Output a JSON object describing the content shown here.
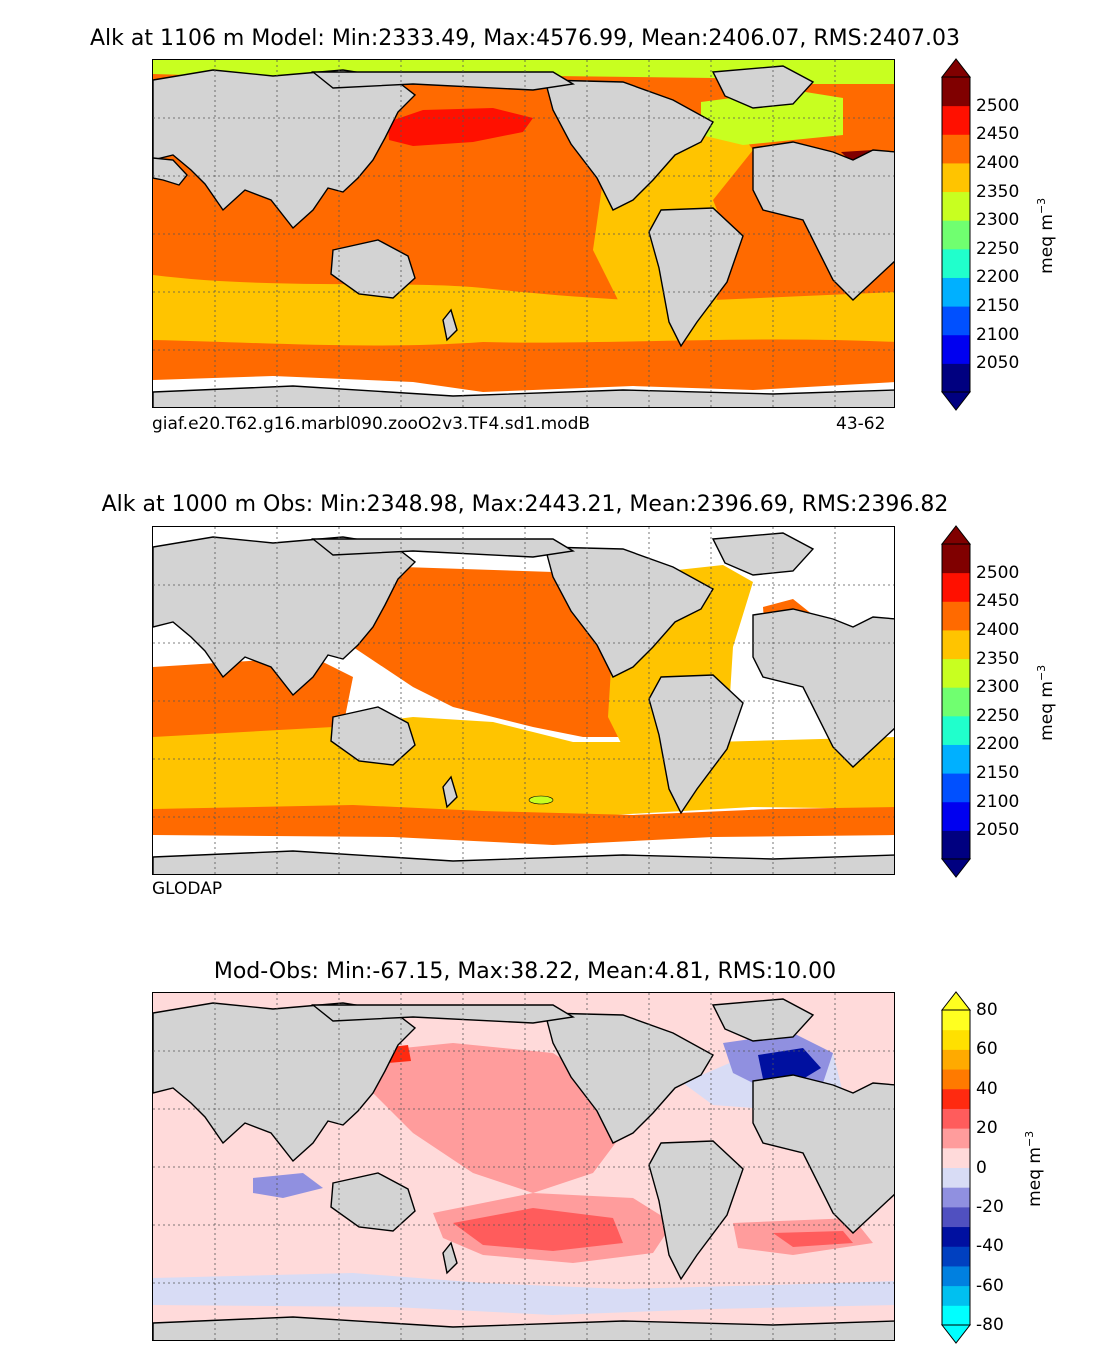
{
  "panels": {
    "model": {
      "title": "Alk at 1106 m Model: Min:2333.49, Max:4576.99, Mean:2406.07, RMS:2407.03",
      "case_label": "giaf.e20.T62.g16.marbl090.zooO2v3.TF4.sd1.modB",
      "years_label": "43-62"
    },
    "obs": {
      "title": "Alk at 1000 m Obs: Min:2348.98, Max:2443.21, Mean:2396.69, RMS:2396.82",
      "source_label": "GLODAP"
    },
    "diff": {
      "title": "Mod-Obs: Min:-67.15, Max:38.22, Mean:4.81, RMS:10.00"
    }
  },
  "colorbar_main": {
    "unit": "meq m",
    "unit_exp": "−3",
    "ticks": [
      "2500",
      "2450",
      "2400",
      "2350",
      "2300",
      "2250",
      "2200",
      "2150",
      "2100",
      "2050"
    ],
    "colors": [
      "#000080",
      "#0000f0",
      "#0050ff",
      "#00b0ff",
      "#20ffcc",
      "#70ff70",
      "#c8ff20",
      "#ffc400",
      "#ff6a00",
      "#ff1000",
      "#800000"
    ],
    "under": "#000080",
    "over": "#800000"
  },
  "colorbar_diff": {
    "unit": "meq m",
    "unit_exp": "−3",
    "ticks": [
      "80",
      "60",
      "40",
      "20",
      "0",
      "-20",
      "-40",
      "-60",
      "-80"
    ],
    "colors": [
      "#00ffff",
      "#00c0f0",
      "#0080e0",
      "#0040c0",
      "#0010a0",
      "#5050c0",
      "#9090e0",
      "#d8dcf5",
      "#ffdada",
      "#ff9c9c",
      "#ff5c5c",
      "#ff2a10",
      "#ff7a00",
      "#ffaa00",
      "#ffe000",
      "#ffff20"
    ],
    "under": "#00ffff",
    "over": "#ffff20"
  },
  "palette": {
    "land": "#d3d3d3",
    "missing": "#ffffff",
    "grid": "#555555"
  },
  "chart_data": [
    {
      "type": "heatmap",
      "title": "Alk at 1106 m Model: Min:2333.49, Max:4576.99, Mean:2406.07, RMS:2407.03",
      "variable": "Alkalinity",
      "units": "meq m^-3",
      "levels": [
        2050,
        2100,
        2150,
        2200,
        2250,
        2300,
        2350,
        2400,
        2450,
        2500
      ],
      "stats": {
        "min": 2333.49,
        "max": 4576.99,
        "mean": 2406.07,
        "rms": 2407.03
      }
    },
    {
      "type": "heatmap",
      "title": "Alk at 1000 m Obs: Min:2348.98, Max:2443.21, Mean:2396.69, RMS:2396.82",
      "variable": "Alkalinity",
      "units": "meq m^-3",
      "levels": [
        2050,
        2100,
        2150,
        2200,
        2250,
        2300,
        2350,
        2400,
        2450,
        2500
      ],
      "stats": {
        "min": 2348.98,
        "max": 2443.21,
        "mean": 2396.69,
        "rms": 2396.82
      }
    },
    {
      "type": "heatmap",
      "title": "Mod-Obs: Min:-67.15, Max:38.22, Mean:4.81, RMS:10.00",
      "variable": "Alkalinity difference",
      "units": "meq m^-3",
      "levels": [
        -80,
        -70,
        -60,
        -50,
        -40,
        -30,
        -20,
        -10,
        0,
        10,
        20,
        30,
        40,
        50,
        60,
        70,
        80
      ],
      "stats": {
        "min": -67.15,
        "max": 38.22,
        "mean": 4.81,
        "rms": 10.0
      }
    }
  ]
}
